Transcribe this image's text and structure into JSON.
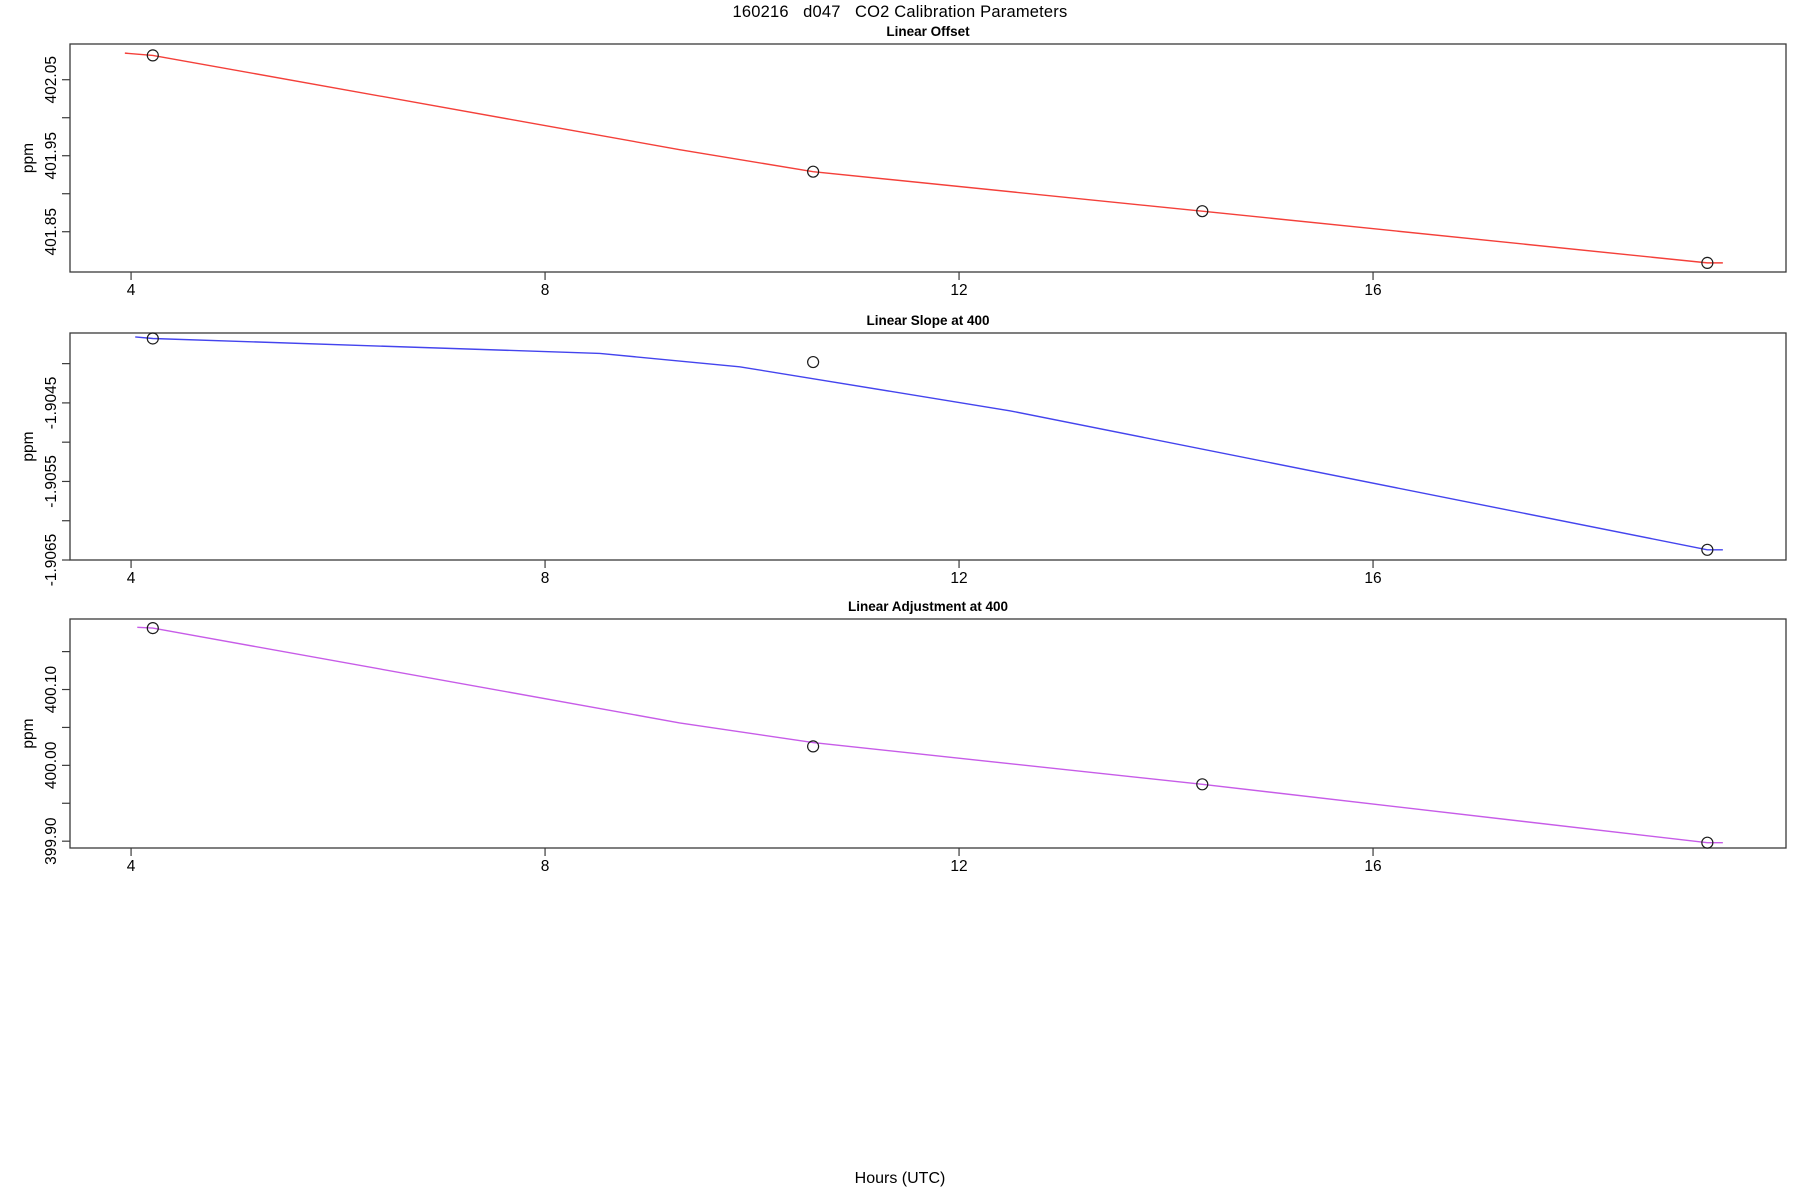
{
  "figure": {
    "title": "160216   d047   CO2 Calibration Parameters",
    "xlabel": "Hours (UTC)"
  },
  "chart_data": [
    {
      "type": "line",
      "title": "Linear Offset",
      "ylabel": "ppm",
      "color": "#f4403a",
      "marker": "open-circle",
      "xlim": [
        3.41,
        19.99
      ],
      "ylim": [
        401.797,
        402.097
      ],
      "xticks": [
        {
          "v": 4,
          "label": "4"
        },
        {
          "v": 8,
          "label": "8"
        },
        {
          "v": 12,
          "label": "12"
        },
        {
          "v": 16,
          "label": "16"
        }
      ],
      "yticks": [
        {
          "v": 402.05,
          "label": "402.05"
        },
        {
          "v": 402.0,
          "label": ""
        },
        {
          "v": 401.95,
          "label": "401.95"
        },
        {
          "v": 401.9,
          "label": ""
        },
        {
          "v": 401.85,
          "label": "401.85"
        }
      ],
      "points": [
        [
          4.21,
          402.082
        ],
        [
          10.59,
          401.929
        ],
        [
          14.35,
          401.877
        ],
        [
          19.23,
          401.809
        ]
      ],
      "line": [
        [
          3.94,
          402.085
        ],
        [
          4.21,
          402.082
        ],
        [
          9.3,
          401.958
        ],
        [
          10.59,
          401.929
        ],
        [
          14.35,
          401.877
        ],
        [
          19.23,
          401.809
        ],
        [
          19.38,
          401.809
        ]
      ]
    },
    {
      "type": "line",
      "title": "Linear Slope at 400",
      "ylabel": "ppm",
      "color": "#4444ee",
      "marker": "open-circle",
      "xlim": [
        3.41,
        19.99
      ],
      "ylim": [
        -1.9065,
        -1.90361
      ],
      "xticks": [
        {
          "v": 4,
          "label": "4"
        },
        {
          "v": 8,
          "label": "8"
        },
        {
          "v": 12,
          "label": "12"
        },
        {
          "v": 16,
          "label": "16"
        }
      ],
      "yticks": [
        {
          "v": -1.904,
          "label": ""
        },
        {
          "v": -1.9045,
          "label": "-1.9045"
        },
        {
          "v": -1.905,
          "label": ""
        },
        {
          "v": -1.9055,
          "label": "-1.9055"
        },
        {
          "v": -1.906,
          "label": ""
        },
        {
          "v": -1.9065,
          "label": "-1.9065"
        }
      ],
      "points": [
        [
          4.21,
          -1.90368
        ],
        [
          10.59,
          -1.90398
        ],
        [
          19.23,
          -1.90637
        ]
      ],
      "line": [
        [
          4.04,
          -1.90366
        ],
        [
          4.21,
          -1.90368
        ],
        [
          8.53,
          -1.90387
        ],
        [
          9.88,
          -1.90404
        ],
        [
          12.49,
          -1.9046
        ],
        [
          19.23,
          -1.90637
        ],
        [
          19.38,
          -1.90637
        ]
      ]
    },
    {
      "type": "line",
      "title": "Linear Adjustment at 400",
      "ylabel": "ppm",
      "color": "#c75ce8",
      "marker": "open-circle",
      "xlim": [
        3.41,
        19.99
      ],
      "ylim": [
        399.891,
        400.193
      ],
      "xticks": [
        {
          "v": 4,
          "label": "4"
        },
        {
          "v": 8,
          "label": "8"
        },
        {
          "v": 12,
          "label": "12"
        },
        {
          "v": 16,
          "label": "16"
        }
      ],
      "yticks": [
        {
          "v": 400.15,
          "label": ""
        },
        {
          "v": 400.1,
          "label": "400.10"
        },
        {
          "v": 400.05,
          "label": ""
        },
        {
          "v": 400.0,
          "label": "400.00"
        },
        {
          "v": 399.95,
          "label": ""
        },
        {
          "v": 399.9,
          "label": "399.90"
        }
      ],
      "points": [
        [
          4.21,
          400.181
        ],
        [
          10.59,
          400.025
        ],
        [
          14.35,
          399.975
        ],
        [
          19.23,
          399.898
        ]
      ],
      "line": [
        [
          4.06,
          400.182
        ],
        [
          4.21,
          400.181
        ],
        [
          9.3,
          400.056
        ],
        [
          10.59,
          400.03
        ],
        [
          14.35,
          399.975
        ],
        [
          19.23,
          399.898
        ],
        [
          19.38,
          399.898
        ]
      ]
    }
  ]
}
